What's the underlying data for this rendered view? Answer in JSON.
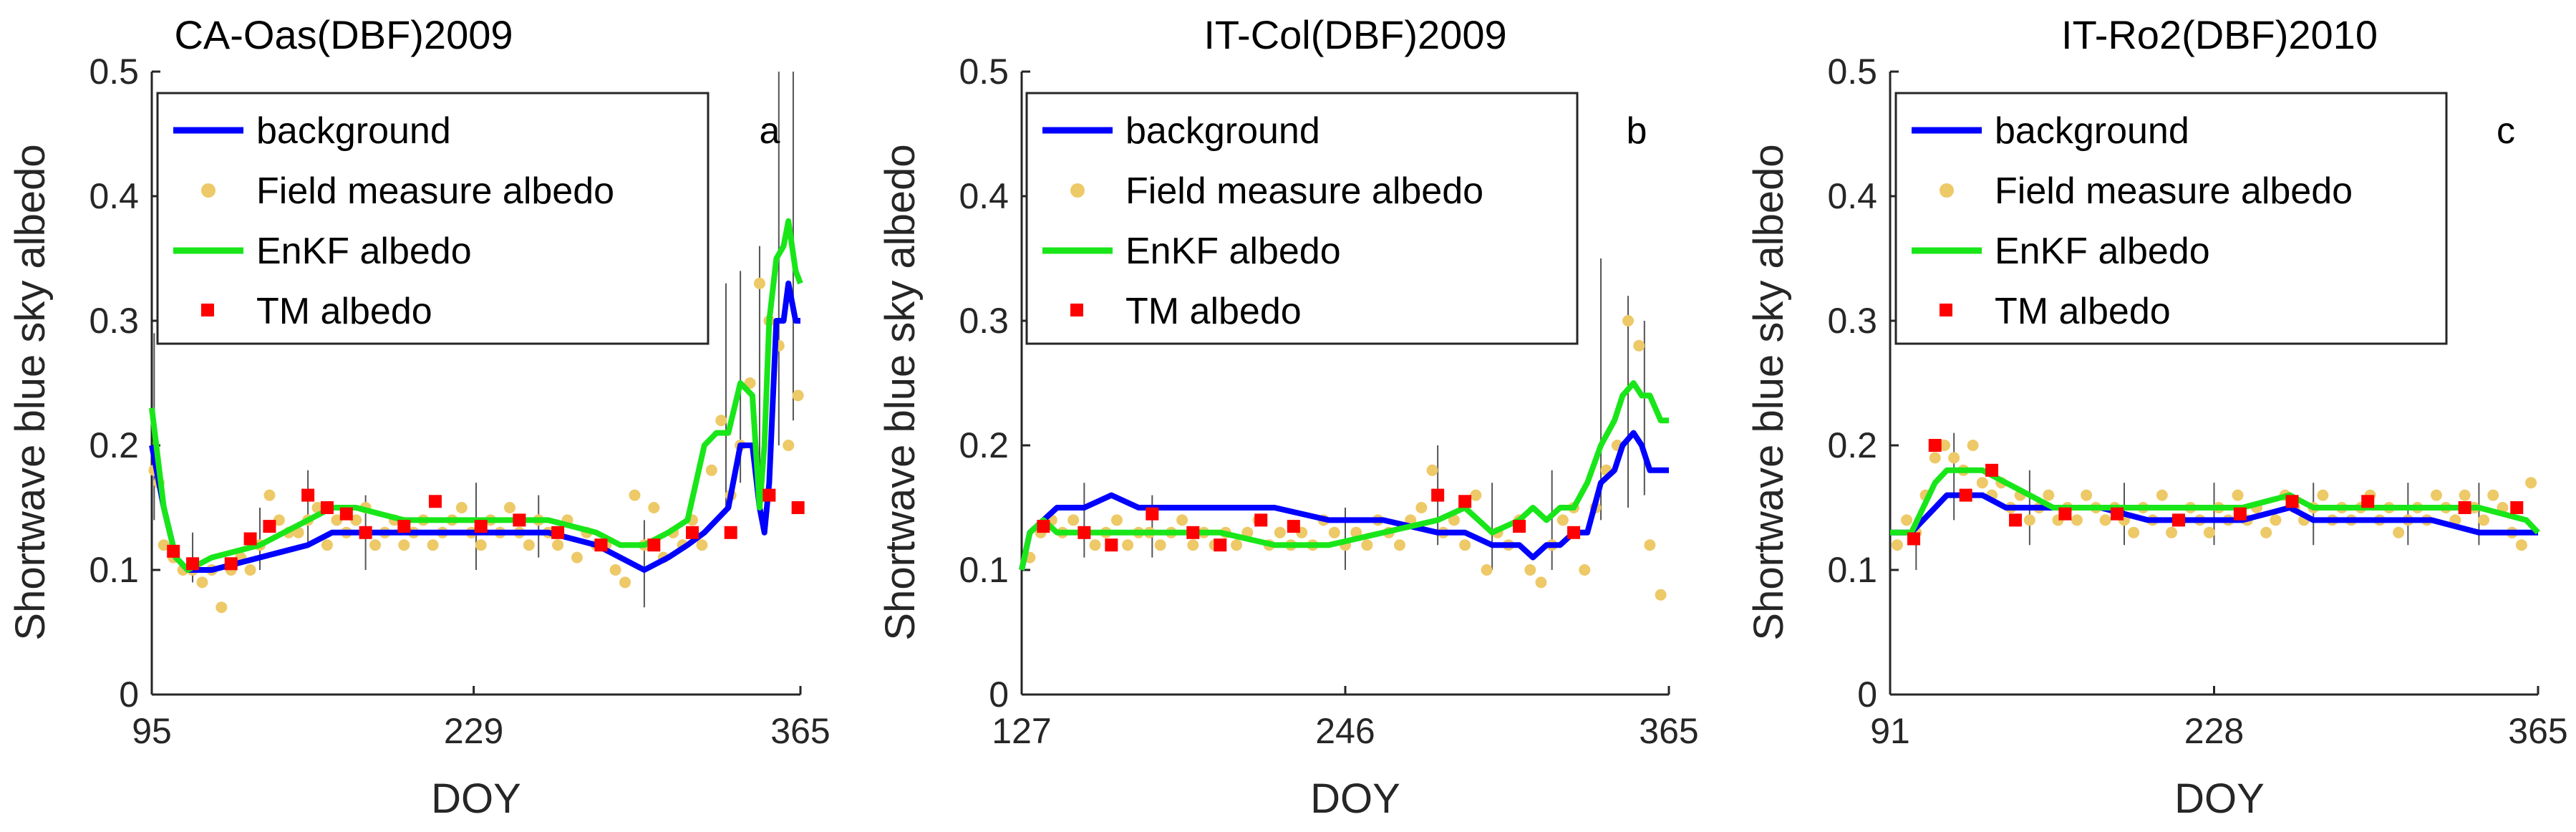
{
  "colors": {
    "background": "#0000ff",
    "field": "#edc967",
    "enkf": "#19e619",
    "tm": "#ff0000",
    "errorbar": "#555555",
    "axis": "#262626"
  },
  "legend_entries": [
    "background",
    "Field measure albedo",
    "EnKF albedo",
    "TM albedo"
  ],
  "chart_data": [
    {
      "type": "line",
      "title": "CA-Oas(DBF)2009",
      "panel_letter": "a",
      "xlabel": "DOY",
      "ylabel": "Shortwave blue sky albedo",
      "xlim": [
        95,
        365
      ],
      "ylim": [
        0,
        0.5
      ],
      "xticks": [
        95,
        229,
        365
      ],
      "yticks": [
        0,
        0.1,
        0.2,
        0.3,
        0.4,
        0.5
      ],
      "series": [
        {
          "name": "background",
          "x": [
            95,
            100,
            105,
            110,
            120,
            140,
            160,
            170,
            180,
            200,
            220,
            240,
            260,
            280,
            290,
            300,
            310,
            318,
            325,
            330,
            335,
            340,
            345,
            348,
            350,
            352,
            355,
            358,
            360,
            363,
            365
          ],
          "values": [
            0.2,
            0.15,
            0.11,
            0.1,
            0.1,
            0.11,
            0.12,
            0.13,
            0.13,
            0.13,
            0.13,
            0.13,
            0.13,
            0.12,
            0.11,
            0.1,
            0.11,
            0.12,
            0.13,
            0.14,
            0.15,
            0.2,
            0.2,
            0.15,
            0.13,
            0.17,
            0.3,
            0.3,
            0.33,
            0.3,
            0.3
          ]
        },
        {
          "name": "EnKF albedo",
          "x": [
            95,
            100,
            105,
            110,
            120,
            140,
            160,
            170,
            180,
            200,
            220,
            240,
            260,
            280,
            290,
            300,
            310,
            318,
            325,
            330,
            335,
            340,
            345,
            348,
            350,
            352,
            355,
            358,
            360,
            363,
            365
          ],
          "values": [
            0.23,
            0.15,
            0.11,
            0.1,
            0.11,
            0.12,
            0.14,
            0.15,
            0.15,
            0.14,
            0.14,
            0.14,
            0.14,
            0.13,
            0.12,
            0.12,
            0.13,
            0.14,
            0.2,
            0.21,
            0.21,
            0.25,
            0.24,
            0.15,
            0.2,
            0.3,
            0.35,
            0.36,
            0.38,
            0.34,
            0.33
          ]
        },
        {
          "name": "Field measure albedo",
          "x": [
            96,
            98,
            100,
            104,
            108,
            112,
            116,
            120,
            124,
            128,
            132,
            136,
            140,
            144,
            148,
            152,
            156,
            160,
            164,
            168,
            172,
            176,
            180,
            184,
            188,
            192,
            196,
            200,
            204,
            208,
            212,
            216,
            220,
            224,
            228,
            232,
            236,
            240,
            244,
            248,
            252,
            256,
            260,
            264,
            268,
            272,
            276,
            280,
            284,
            288,
            292,
            296,
            300,
            304,
            308,
            312,
            316,
            320,
            324,
            328,
            332,
            336,
            340,
            344,
            348,
            352,
            356,
            360,
            364
          ],
          "values": [
            0.18,
            0.17,
            0.12,
            0.11,
            0.1,
            0.1,
            0.09,
            0.1,
            0.07,
            0.1,
            0.11,
            0.1,
            0.12,
            0.16,
            0.14,
            0.13,
            0.13,
            0.14,
            0.15,
            0.12,
            0.14,
            0.13,
            0.14,
            0.15,
            0.12,
            0.13,
            0.14,
            0.12,
            0.13,
            0.14,
            0.12,
            0.13,
            0.14,
            0.15,
            0.13,
            0.12,
            0.14,
            0.13,
            0.15,
            0.13,
            0.12,
            0.14,
            0.13,
            0.12,
            0.14,
            0.11,
            0.13,
            0.12,
            0.12,
            0.1,
            0.09,
            0.16,
            0.12,
            0.15,
            0.11,
            0.13,
            0.12,
            0.14,
            0.12,
            0.18,
            0.22,
            0.16,
            0.2,
            0.25,
            0.33,
            0.3,
            0.28,
            0.2,
            0.24
          ]
        },
        {
          "name": "TM albedo",
          "x": [
            104,
            112,
            128,
            136,
            144,
            160,
            168,
            176,
            184,
            200,
            213,
            232,
            248,
            264,
            282,
            304,
            320,
            336,
            352,
            364
          ],
          "values": [
            0.115,
            0.105,
            0.105,
            0.125,
            0.135,
            0.16,
            0.15,
            0.145,
            0.13,
            0.135,
            0.155,
            0.135,
            0.14,
            0.13,
            0.12,
            0.12,
            0.13,
            0.13,
            0.16,
            0.15
          ]
        }
      ],
      "errorbars": [
        {
          "x": 96,
          "low": 0.14,
          "high": 0.29
        },
        {
          "x": 112,
          "low": 0.09,
          "high": 0.13
        },
        {
          "x": 140,
          "low": 0.1,
          "high": 0.15
        },
        {
          "x": 160,
          "low": 0.12,
          "high": 0.18
        },
        {
          "x": 184,
          "low": 0.1,
          "high": 0.16
        },
        {
          "x": 230,
          "low": 0.1,
          "high": 0.17
        },
        {
          "x": 256,
          "low": 0.11,
          "high": 0.16
        },
        {
          "x": 300,
          "low": 0.07,
          "high": 0.14
        },
        {
          "x": 334,
          "low": 0.15,
          "high": 0.33
        },
        {
          "x": 340,
          "low": 0.17,
          "high": 0.34
        },
        {
          "x": 348,
          "low": 0.18,
          "high": 0.36
        },
        {
          "x": 356,
          "low": 0.2,
          "high": 0.5
        },
        {
          "x": 362,
          "low": 0.22,
          "high": 0.5
        }
      ]
    },
    {
      "type": "line",
      "title": "IT-Col(DBF)2009",
      "panel_letter": "b",
      "xlabel": "DOY",
      "ylabel": "Shortwave blue sky albedo",
      "xlim": [
        127,
        365
      ],
      "ylim": [
        0,
        0.5
      ],
      "xticks": [
        127,
        246,
        365
      ],
      "yticks": [
        0,
        0.1,
        0.2,
        0.3,
        0.4,
        0.5
      ],
      "series": [
        {
          "name": "background",
          "x": [
            127,
            130,
            135,
            140,
            150,
            160,
            170,
            180,
            200,
            220,
            240,
            260,
            280,
            290,
            300,
            310,
            315,
            320,
            325,
            330,
            335,
            340,
            345,
            348,
            352,
            355,
            358,
            362,
            365
          ],
          "values": [
            0.1,
            0.13,
            0.14,
            0.15,
            0.15,
            0.16,
            0.15,
            0.15,
            0.15,
            0.15,
            0.14,
            0.14,
            0.13,
            0.13,
            0.12,
            0.12,
            0.11,
            0.12,
            0.12,
            0.13,
            0.13,
            0.17,
            0.18,
            0.2,
            0.21,
            0.2,
            0.18,
            0.18,
            0.18
          ]
        },
        {
          "name": "EnKF albedo",
          "x": [
            127,
            130,
            135,
            140,
            150,
            160,
            170,
            180,
            200,
            220,
            240,
            260,
            280,
            290,
            300,
            310,
            315,
            320,
            325,
            330,
            335,
            340,
            345,
            348,
            352,
            355,
            358,
            362,
            365
          ],
          "values": [
            0.1,
            0.13,
            0.14,
            0.13,
            0.13,
            0.13,
            0.13,
            0.13,
            0.13,
            0.12,
            0.12,
            0.13,
            0.14,
            0.15,
            0.13,
            0.14,
            0.15,
            0.14,
            0.15,
            0.15,
            0.17,
            0.2,
            0.22,
            0.24,
            0.25,
            0.24,
            0.24,
            0.22,
            0.22
          ]
        },
        {
          "name": "Field measure albedo",
          "x": [
            130,
            134,
            138,
            142,
            146,
            150,
            154,
            158,
            162,
            166,
            170,
            174,
            178,
            182,
            186,
            190,
            194,
            198,
            202,
            206,
            210,
            214,
            218,
            222,
            226,
            230,
            234,
            238,
            242,
            246,
            250,
            254,
            258,
            262,
            266,
            270,
            274,
            278,
            282,
            286,
            290,
            294,
            298,
            302,
            306,
            310,
            314,
            318,
            322,
            326,
            330,
            334,
            338,
            342,
            346,
            350,
            354,
            358,
            362
          ],
          "values": [
            0.11,
            0.13,
            0.14,
            0.13,
            0.14,
            0.13,
            0.12,
            0.13,
            0.14,
            0.12,
            0.13,
            0.13,
            0.12,
            0.13,
            0.14,
            0.12,
            0.13,
            0.12,
            0.13,
            0.12,
            0.13,
            0.14,
            0.12,
            0.13,
            0.12,
            0.13,
            0.12,
            0.14,
            0.13,
            0.12,
            0.13,
            0.12,
            0.14,
            0.13,
            0.12,
            0.14,
            0.15,
            0.18,
            0.13,
            0.14,
            0.12,
            0.16,
            0.1,
            0.13,
            0.12,
            0.14,
            0.1,
            0.09,
            0.12,
            0.14,
            0.15,
            0.1,
            0.15,
            0.18,
            0.2,
            0.3,
            0.28,
            0.12,
            0.08
          ]
        },
        {
          "name": "TM albedo",
          "x": [
            135,
            150,
            160,
            175,
            190,
            200,
            215,
            227,
            280,
            290,
            310,
            330
          ],
          "values": [
            0.135,
            0.13,
            0.12,
            0.145,
            0.13,
            0.12,
            0.14,
            0.135,
            0.16,
            0.155,
            0.135,
            0.13
          ]
        }
      ],
      "errorbars": [
        {
          "x": 150,
          "low": 0.11,
          "high": 0.17
        },
        {
          "x": 175,
          "low": 0.11,
          "high": 0.16
        },
        {
          "x": 246,
          "low": 0.1,
          "high": 0.15
        },
        {
          "x": 280,
          "low": 0.12,
          "high": 0.2
        },
        {
          "x": 300,
          "low": 0.1,
          "high": 0.17
        },
        {
          "x": 322,
          "low": 0.1,
          "high": 0.18
        },
        {
          "x": 340,
          "low": 0.14,
          "high": 0.35
        },
        {
          "x": 350,
          "low": 0.15,
          "high": 0.32
        },
        {
          "x": 356,
          "low": 0.16,
          "high": 0.3
        }
      ]
    },
    {
      "type": "line",
      "title": "IT-Ro2(DBF)2010",
      "panel_letter": "c",
      "xlabel": "DOY",
      "ylabel": "Shortwave blue sky albedo",
      "xlim": [
        91,
        365
      ],
      "ylim": [
        0,
        0.5
      ],
      "xticks": [
        91,
        228,
        365
      ],
      "yticks": [
        0,
        0.1,
        0.2,
        0.3,
        0.4,
        0.5
      ],
      "series": [
        {
          "name": "background",
          "x": [
            91,
            100,
            105,
            110,
            115,
            120,
            130,
            140,
            150,
            160,
            180,
            200,
            220,
            240,
            260,
            270,
            280,
            300,
            320,
            340,
            360,
            365
          ],
          "values": [
            0.13,
            0.13,
            0.14,
            0.15,
            0.16,
            0.16,
            0.16,
            0.15,
            0.15,
            0.15,
            0.15,
            0.14,
            0.14,
            0.14,
            0.15,
            0.14,
            0.14,
            0.14,
            0.14,
            0.13,
            0.13,
            0.13
          ]
        },
        {
          "name": "EnKF albedo",
          "x": [
            91,
            100,
            105,
            110,
            115,
            120,
            130,
            140,
            150,
            160,
            180,
            200,
            220,
            240,
            260,
            270,
            280,
            300,
            320,
            340,
            360,
            365
          ],
          "values": [
            0.13,
            0.13,
            0.15,
            0.17,
            0.18,
            0.18,
            0.18,
            0.17,
            0.16,
            0.15,
            0.15,
            0.15,
            0.15,
            0.15,
            0.16,
            0.15,
            0.15,
            0.15,
            0.15,
            0.15,
            0.14,
            0.13
          ]
        },
        {
          "name": "Field measure albedo",
          "x": [
            94,
            98,
            102,
            106,
            110,
            114,
            118,
            122,
            126,
            130,
            134,
            138,
            142,
            146,
            150,
            154,
            158,
            162,
            166,
            170,
            174,
            178,
            182,
            186,
            190,
            194,
            198,
            202,
            206,
            210,
            214,
            218,
            222,
            226,
            230,
            234,
            238,
            242,
            246,
            250,
            254,
            258,
            262,
            266,
            270,
            274,
            278,
            282,
            286,
            290,
            294,
            298,
            302,
            306,
            310,
            314,
            318,
            322,
            326,
            330,
            334,
            338,
            342,
            346,
            350,
            354,
            358,
            362
          ],
          "values": [
            0.12,
            0.14,
            0.13,
            0.16,
            0.19,
            0.2,
            0.19,
            0.18,
            0.2,
            0.17,
            0.16,
            0.17,
            0.15,
            0.16,
            0.14,
            0.15,
            0.16,
            0.14,
            0.15,
            0.14,
            0.16,
            0.15,
            0.14,
            0.15,
            0.14,
            0.13,
            0.15,
            0.14,
            0.16,
            0.13,
            0.14,
            0.15,
            0.14,
            0.13,
            0.15,
            0.14,
            0.16,
            0.14,
            0.15,
            0.13,
            0.14,
            0.16,
            0.15,
            0.14,
            0.15,
            0.16,
            0.14,
            0.15,
            0.14,
            0.15,
            0.16,
            0.14,
            0.15,
            0.13,
            0.14,
            0.15,
            0.14,
            0.16,
            0.15,
            0.14,
            0.16,
            0.15,
            0.14,
            0.16,
            0.15,
            0.13,
            0.12,
            0.17
          ]
        },
        {
          "name": "TM albedo",
          "x": [
            101,
            110,
            123,
            134,
            144,
            165,
            187,
            213,
            239,
            261,
            293,
            334,
            356
          ],
          "values": [
            0.125,
            0.2,
            0.16,
            0.18,
            0.14,
            0.145,
            0.145,
            0.14,
            0.145,
            0.155,
            0.155,
            0.15,
            0.15
          ]
        }
      ],
      "errorbars": [
        {
          "x": 102,
          "low": 0.1,
          "high": 0.14
        },
        {
          "x": 118,
          "low": 0.14,
          "high": 0.21
        },
        {
          "x": 150,
          "low": 0.12,
          "high": 0.18
        },
        {
          "x": 190,
          "low": 0.12,
          "high": 0.17
        },
        {
          "x": 228,
          "low": 0.12,
          "high": 0.17
        },
        {
          "x": 270,
          "low": 0.12,
          "high": 0.17
        },
        {
          "x": 310,
          "low": 0.12,
          "high": 0.17
        },
        {
          "x": 340,
          "low": 0.12,
          "high": 0.17
        }
      ]
    }
  ]
}
